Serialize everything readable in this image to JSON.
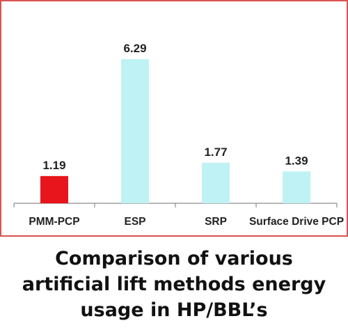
{
  "chart_data": {
    "type": "bar",
    "categories": [
      "PMM-PCP",
      "ESP",
      "SRP",
      "Surface Drive PCP"
    ],
    "values": [
      1.19,
      6.29,
      1.77,
      1.39
    ],
    "value_labels": [
      "1.19",
      "6.29",
      "1.77",
      "1.39"
    ],
    "colors": [
      "#e8151c",
      "#bff2f4",
      "#bff2f4",
      "#bff2f4"
    ],
    "ylim": [
      0,
      7
    ],
    "title": "",
    "xlabel": "",
    "ylabel": "",
    "grid": false,
    "legend": "none"
  },
  "caption": "Comparison of various artificial lift methods energy usage in HP/BBL’s",
  "colors": {
    "frame_border": "#d9534f",
    "axis": "#8c8c8c",
    "highlight": "#e8151c",
    "bar": "#bff2f4"
  }
}
